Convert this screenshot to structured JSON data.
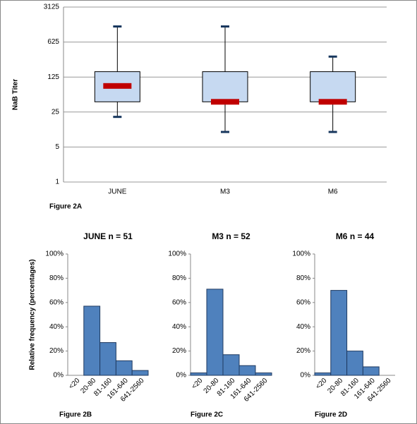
{
  "chart_data": [
    {
      "type": "box",
      "ylabel": "NaB Titer",
      "caption": "Figure 2A",
      "categories": [
        "JUNE",
        "M3",
        "M6"
      ],
      "min": [
        20,
        10,
        10
      ],
      "q1": [
        40,
        40,
        40
      ],
      "median": [
        83,
        40,
        40
      ],
      "q3": [
        160,
        160,
        160
      ],
      "max": [
        1280,
        1280,
        320
      ],
      "box_color": "#c6d9f1",
      "median_color": "#c00000",
      "whisker_color": "#17375e",
      "log": true,
      "ylim": [
        1,
        3125
      ],
      "yticks": [
        1,
        5,
        25,
        125,
        625,
        3125
      ],
      "grid": true
    },
    {
      "type": "bar",
      "title": "JUNE n = 51",
      "ylabel": "Relative frequency (percentages)",
      "caption": "Figure 2B",
      "categories": [
        "<20",
        "20-80",
        "81-160",
        "161-640",
        "641-2560"
      ],
      "values": [
        0,
        57,
        27,
        12,
        4
      ],
      "color": "#4f81bd",
      "ylim": [
        0,
        100
      ],
      "yticks": [
        {
          "value": 0,
          "label": "0%"
        },
        {
          "value": 20,
          "label": "20%"
        },
        {
          "value": 40,
          "label": "40%"
        },
        {
          "value": 60,
          "label": "60%"
        },
        {
          "value": 80,
          "label": "80%"
        },
        {
          "value": 100,
          "label": "100%"
        }
      ]
    },
    {
      "type": "bar",
      "title": "M3 n = 52",
      "caption": "Figure 2C",
      "categories": [
        "<20",
        "20-80",
        "81-160",
        "161-640",
        "641-2560"
      ],
      "values": [
        2,
        71,
        17,
        8,
        2
      ],
      "color": "#4f81bd",
      "ylim": [
        0,
        100
      ],
      "yticks": [
        {
          "value": 0,
          "label": "0%"
        },
        {
          "value": 20,
          "label": "20%"
        },
        {
          "value": 40,
          "label": "40%"
        },
        {
          "value": 60,
          "label": "60%"
        },
        {
          "value": 80,
          "label": "80%"
        },
        {
          "value": 100,
          "label": "100%"
        }
      ]
    },
    {
      "type": "bar",
      "title": "M6 n = 44",
      "caption": "Figure 2D",
      "categories": [
        "<20",
        "20-80",
        "81-160",
        "161-640",
        "641-2560"
      ],
      "values": [
        2,
        70,
        20,
        7,
        0
      ],
      "color": "#4f81bd",
      "ylim": [
        0,
        100
      ],
      "yticks": [
        {
          "value": 0,
          "label": "0%"
        },
        {
          "value": 20,
          "label": "20%"
        },
        {
          "value": 40,
          "label": "40%"
        },
        {
          "value": 60,
          "label": "60%"
        },
        {
          "value": 80,
          "label": "80%"
        },
        {
          "value": 100,
          "label": "100%"
        }
      ]
    }
  ]
}
